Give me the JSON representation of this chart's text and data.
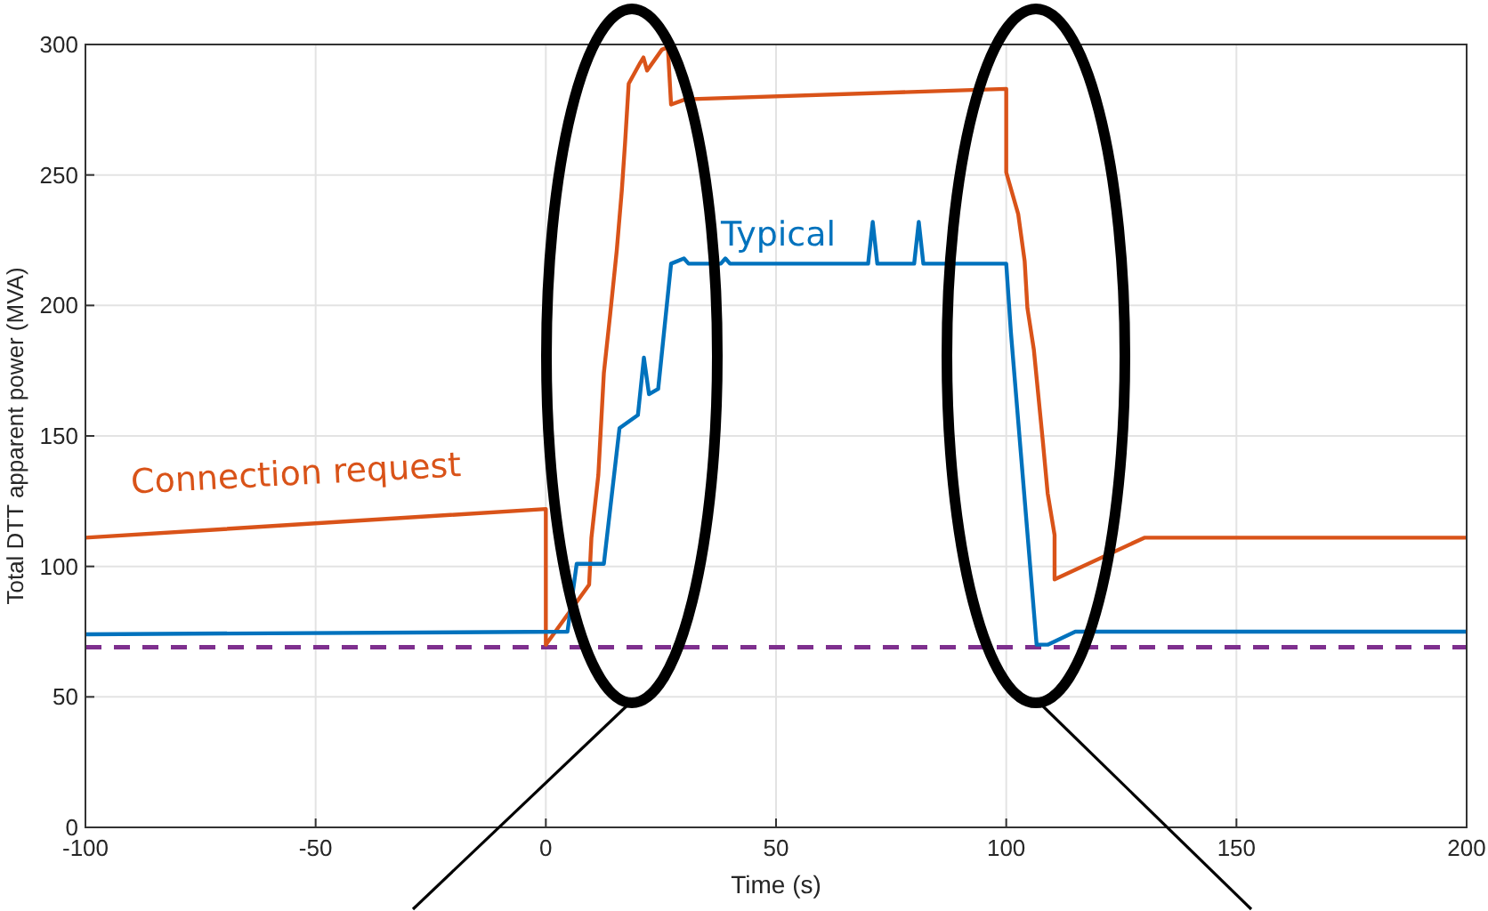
{
  "chart_data": {
    "type": "line",
    "xlabel": "Time (s)",
    "ylabel": "Total DTT apparent power (MVA)",
    "xlim": [
      -100,
      200
    ],
    "ylim": [
      0,
      300
    ],
    "xticks": [
      -100,
      -50,
      0,
      50,
      100,
      150,
      200
    ],
    "yticks": [
      0,
      50,
      100,
      150,
      200,
      250,
      300
    ],
    "grid": true,
    "line_style": "solid",
    "series": [
      {
        "name": "Connection request",
        "color": "#d95319",
        "x": [
          -100,
          0,
          0,
          9.4,
          9.9,
          11.4,
          12.6,
          14,
          15.4,
          16.5,
          17.2,
          18,
          20.5,
          21.2,
          22,
          25.2,
          26.5,
          27.2,
          30.3,
          100,
          100,
          102.6,
          104,
          104.6,
          106,
          107,
          108,
          109,
          110.5,
          110.5,
          130,
          200
        ],
        "values": [
          111,
          122,
          70,
          93,
          111,
          135,
          174,
          197,
          221,
          244,
          262,
          285,
          293,
          295,
          290,
          298,
          299,
          277,
          279,
          283,
          251,
          235,
          217,
          199,
          183,
          165,
          147,
          128,
          112,
          95,
          111,
          111
        ]
      },
      {
        "name": "Typical",
        "color": "#0072bd",
        "x": [
          -100,
          4.7,
          6.7,
          12.6,
          16,
          20,
          21.3,
          22.4,
          24.4,
          27.2,
          30,
          31,
          38,
          39,
          40,
          70,
          71,
          72,
          80,
          81,
          82,
          100,
          101,
          106.6,
          109,
          115,
          200
        ],
        "values": [
          74,
          75,
          101,
          101,
          153,
          158,
          180,
          166,
          168,
          216,
          218,
          216,
          216,
          218,
          216,
          216,
          232,
          216,
          216,
          232,
          216,
          216,
          190,
          70,
          70,
          75,
          75
        ]
      }
    ],
    "ref_lines": [
      {
        "axis": "y",
        "value": 69,
        "color": "#7e2f8e",
        "line_style": "dashed"
      }
    ]
  }
}
